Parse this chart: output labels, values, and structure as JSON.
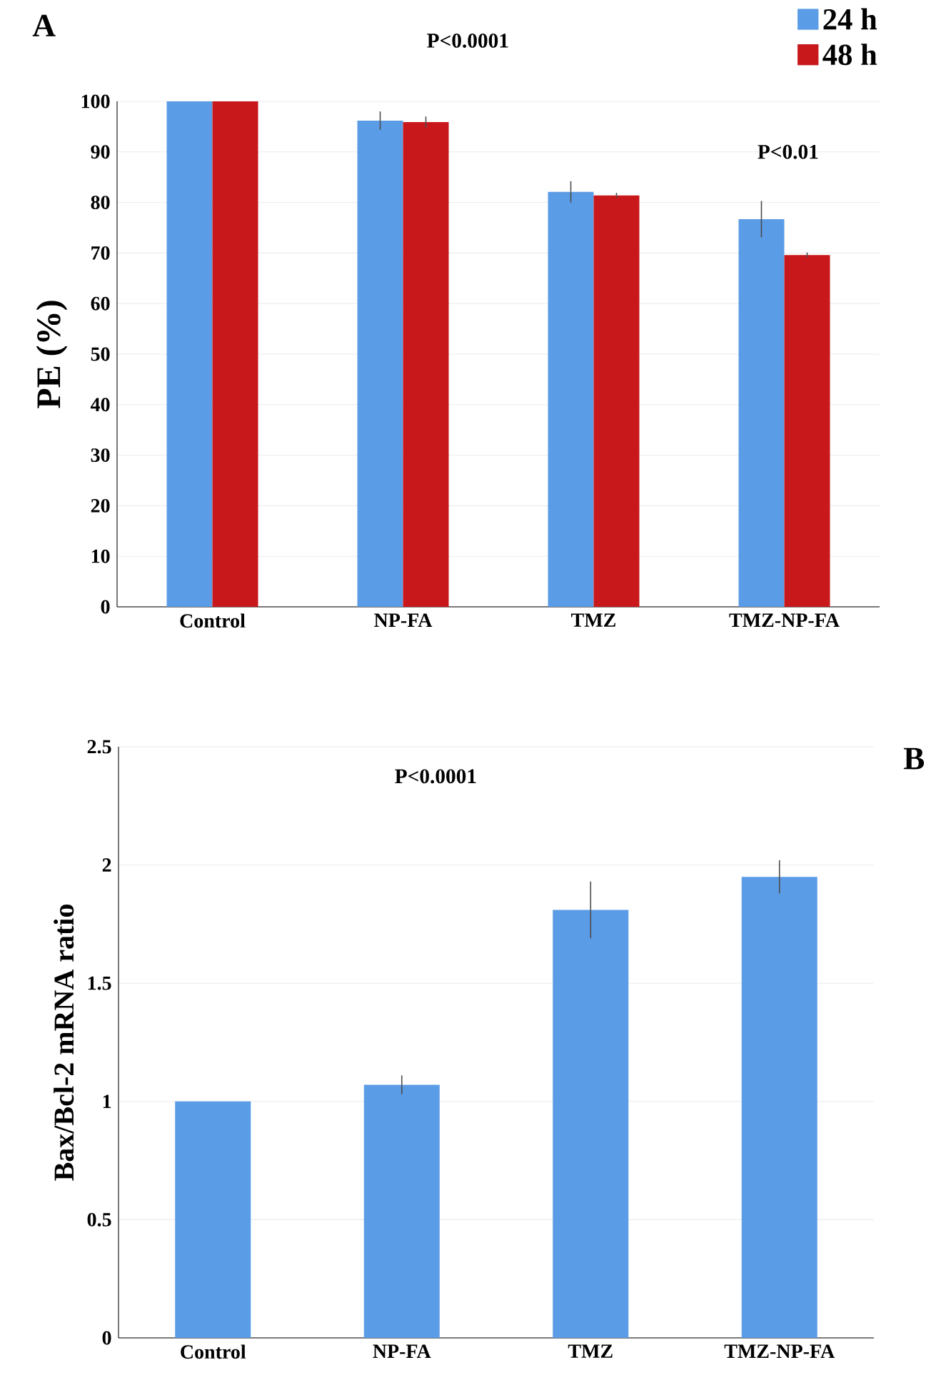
{
  "chart_data": [
    {
      "type": "bar",
      "categories": [
        "Control",
        "NP-FA",
        "TMZ",
        "TMZ-NP-FA"
      ],
      "ylabel": "PE (%)",
      "series": [
        {
          "name": "24 h",
          "color": "#5b9ce6",
          "values": [
            100,
            96.2,
            82.1,
            76.7
          ],
          "errors": [
            null,
            1.8,
            2.1,
            3.6
          ]
        },
        {
          "name": "48 h",
          "color": "#c8181c",
          "values": [
            100,
            95.9,
            81.4,
            69.6
          ],
          "errors": [
            null,
            1.1,
            0.5,
            0.5
          ]
        }
      ],
      "ylim": [
        0,
        100
      ],
      "yticks": [
        0,
        10,
        20,
        30,
        40,
        50,
        60,
        70,
        80,
        90,
        100
      ],
      "grid": "y",
      "legend": "top right",
      "annotations": [
        "A",
        "P<0.0001",
        "P<0.01"
      ]
    },
    {
      "type": "bar",
      "categories": [
        "Control",
        "NP-FA",
        "TMZ",
        "TMZ-NP-FA"
      ],
      "ylabel": "Bax/Bcl-2 mRNA ratio",
      "series": [
        {
          "color": "#5b9ce6",
          "values": [
            1.0,
            1.07,
            1.81,
            1.95
          ],
          "errors": [
            null,
            0.04,
            0.12,
            0.07
          ]
        }
      ],
      "ylim": [
        0,
        2.5
      ],
      "yticks": [
        0,
        0.5,
        1,
        1.5,
        2,
        2.5
      ],
      "grid": "y",
      "annotations": [
        "B",
        "P<0.0001"
      ]
    }
  ]
}
